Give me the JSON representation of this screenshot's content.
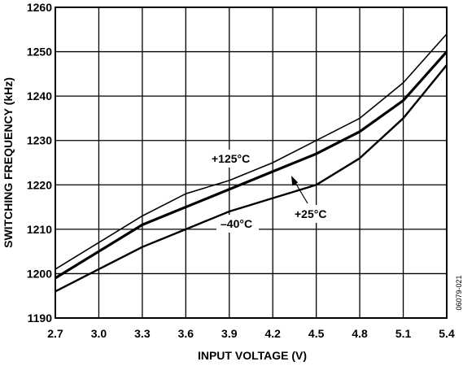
{
  "chart_data": {
    "type": "line",
    "title": "",
    "xlabel": "INPUT VOLTAGE (V)",
    "ylabel": "SWITCHING FREQUENCY (kHz)",
    "xlim": [
      2.7,
      5.4
    ],
    "ylim": [
      1190,
      1260
    ],
    "x_ticks": [
      "2.7",
      "3.0",
      "3.3",
      "3.6",
      "3.9",
      "4.2",
      "4.5",
      "4.8",
      "5.1",
      "5.4"
    ],
    "y_ticks": [
      "1190",
      "1200",
      "1210",
      "1220",
      "1230",
      "1240",
      "1250",
      "1260"
    ],
    "grid": true,
    "x": [
      2.7,
      3.0,
      3.3,
      3.6,
      3.9,
      4.2,
      4.5,
      4.8,
      5.1,
      5.4
    ],
    "series": [
      {
        "name": "+125°C",
        "values": [
          1201,
          1207,
          1213,
          1218,
          1221,
          1225,
          1230,
          1235,
          1243,
          1254
        ]
      },
      {
        "name": "+25°C",
        "values": [
          1199,
          1205,
          1211,
          1215,
          1219,
          1223,
          1227,
          1232,
          1239,
          1250
        ]
      },
      {
        "name": "–40°C",
        "values": [
          1196,
          1201,
          1206,
          1210,
          1214,
          1217,
          1220,
          1226,
          1235,
          1247
        ]
      }
    ],
    "annotations": [
      "+125°C",
      "+25°C",
      "–40°C"
    ],
    "figure_id": "06079-021",
    "line_color": "#000000"
  }
}
